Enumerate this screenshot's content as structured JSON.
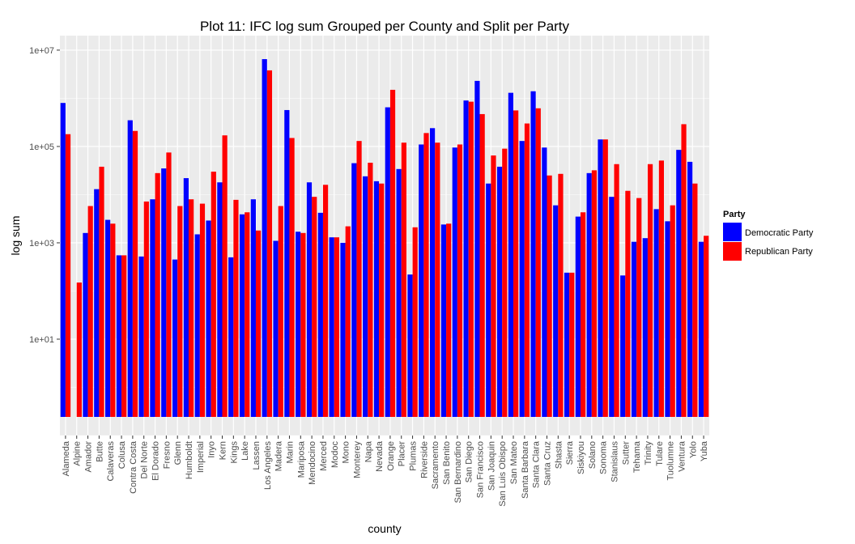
{
  "chart_data": {
    "type": "bar",
    "title": "Plot 11: IFC log sum Grouped per County and Split per Party",
    "xlabel": "county",
    "ylabel": "log sum",
    "y_scale": "log10",
    "ylim": [
      0.1,
      20000000
    ],
    "y_ticks": [
      10,
      1000,
      100000,
      10000000
    ],
    "y_tick_labels": [
      "1e+01",
      "1e+03",
      "1e+05",
      "1e+07"
    ],
    "grid": true,
    "legend": {
      "title": "Party",
      "placement": "right"
    },
    "categories": [
      "Alameda",
      "Alpine",
      "Amador",
      "Butte",
      "Calaveras",
      "Colusa",
      "Contra Costa",
      "Del Norte",
      "El Dorado",
      "Fresno",
      "Glenn",
      "Humboldt",
      "Imperial",
      "Inyo",
      "Kern",
      "Kings",
      "Lake",
      "Lassen",
      "Los Angeles",
      "Madera",
      "Marin",
      "Mariposa",
      "Mendocino",
      "Merced",
      "Modoc",
      "Mono",
      "Monterey",
      "Napa",
      "Nevada",
      "Orange",
      "Placer",
      "Plumas",
      "Riverside",
      "Sacramento",
      "San Benito",
      "San Bernardino",
      "San Diego",
      "San Francisco",
      "San Joaquin",
      "San Luis Obispo",
      "San Mateo",
      "Santa Barbara",
      "Santa Clara",
      "Santa Cruz",
      "Shasta",
      "Sierra",
      "Siskiyou",
      "Solano",
      "Sonoma",
      "Stanislaus",
      "Sutter",
      "Tehama",
      "Trinity",
      "Tulare",
      "Tuolumne",
      "Ventura",
      "Yolo",
      "Yuba"
    ],
    "series": [
      {
        "name": "Democratic Party",
        "color": "#0000ff",
        "values": [
          800000,
          null,
          1600,
          13000,
          3000,
          550,
          350000,
          520,
          8000,
          35000,
          450,
          22000,
          1500,
          2900,
          18000,
          500,
          3900,
          8000,
          6500000,
          1100,
          570000,
          1700,
          18000,
          4200,
          1300,
          1000,
          45000,
          24000,
          19000,
          650000,
          34000,
          220,
          110000,
          240000,
          2400,
          95000,
          900000,
          2300000,
          17000,
          38000,
          1300000,
          130000,
          1400000,
          95000,
          6000,
          240,
          3500,
          28000,
          140000,
          9000,
          210,
          1050,
          1250,
          5000,
          2800,
          85000,
          48000,
          1050
        ]
      },
      {
        "name": "Republican Party",
        "color": "#ff0000",
        "values": [
          180000,
          150,
          5800,
          38000,
          2500,
          550,
          210000,
          7200,
          28000,
          75000,
          5800,
          8000,
          6500,
          30000,
          170000,
          7800,
          4300,
          1800,
          3800000,
          5800,
          150000,
          1600,
          9000,
          16000,
          1300,
          2200,
          130000,
          46000,
          17000,
          1500000,
          120000,
          2100,
          190000,
          120000,
          2500,
          110000,
          850000,
          470000,
          65000,
          90000,
          560000,
          300000,
          620000,
          25000,
          27000,
          240,
          4300,
          32000,
          140000,
          43000,
          12000,
          8500,
          43000,
          51000,
          6000,
          290000,
          17000,
          1400
        ]
      }
    ]
  }
}
